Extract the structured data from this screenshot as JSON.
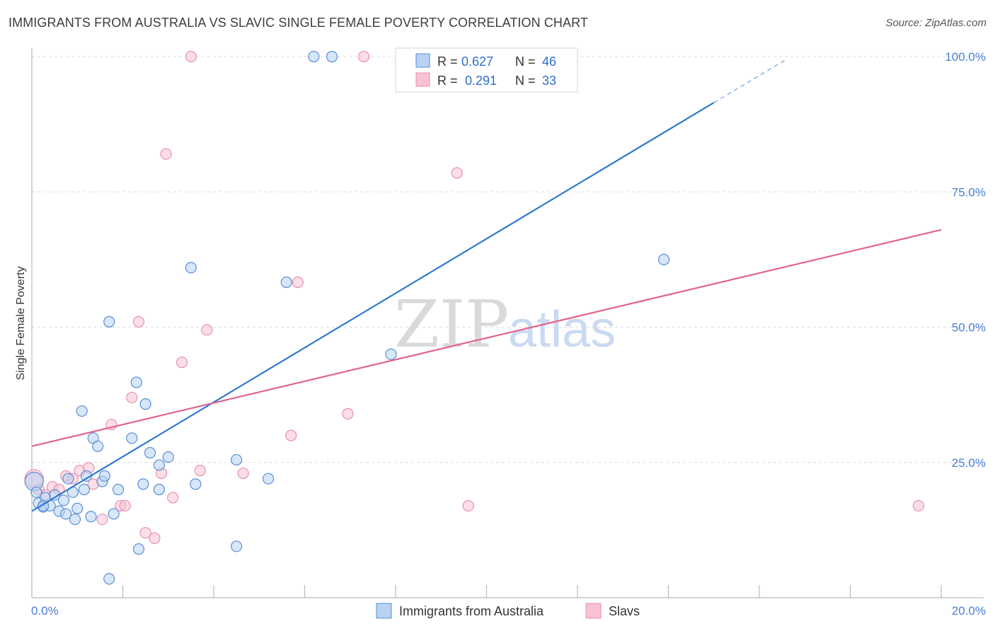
{
  "title": "IMMIGRANTS FROM AUSTRALIA VS SLAVIC SINGLE FEMALE POVERTY CORRELATION CHART",
  "source": "Source: ZipAtlas.com",
  "watermark": {
    "zip": "ZIP",
    "atlas": "atlas"
  },
  "colors": {
    "blue_fill": "#b7d2f3",
    "blue_stroke": "#5b8fd6",
    "blue_line": "#2f78cf",
    "pink_fill": "#f8c2d3",
    "pink_stroke": "#e890ab",
    "pink_line": "#e0648f",
    "tick_text": "#4a7fd0",
    "grid": "#dddddd"
  },
  "legend": {
    "rows": [
      {
        "r_label": "R = ",
        "r_value": "0.627",
        "n_label": "N = ",
        "n_value": "46"
      },
      {
        "r_label": "R = ",
        "r_value": "0.291",
        "n_label": "N = ",
        "n_value": "33"
      }
    ]
  },
  "chart_data": {
    "type": "scatter",
    "title": "IMMIGRANTS FROM AUSTRALIA VS SLAVIC SINGLE FEMALE POVERTY CORRELATION CHART",
    "xlabel": "",
    "ylabel": "Single Female Poverty",
    "xlim": [
      0,
      20
    ],
    "ylim": [
      0,
      102
    ],
    "x_tick_labels": [
      "0.0%",
      "20.0%"
    ],
    "y_ticks": [
      25,
      50,
      75,
      100
    ],
    "y_tick_labels": [
      "25.0%",
      "50.0%",
      "75.0%",
      "100.0%"
    ],
    "grid": true,
    "legend_position": "bottom-center",
    "series": [
      {
        "name": "Immigrants from Australia",
        "color": "blue",
        "r": 0.627,
        "n": 46,
        "trend": {
          "x0": 0.0,
          "y0": 16.0,
          "x1": 15.0,
          "y1": 91.5,
          "dash_to_x": 16.6,
          "dash_to_y": 99.5
        },
        "points": [
          [
            0.05,
            21.5,
            "big"
          ],
          [
            0.1,
            19.5
          ],
          [
            0.15,
            17.5
          ],
          [
            0.25,
            16.8
          ],
          [
            0.3,
            18.5
          ],
          [
            0.4,
            17.0
          ],
          [
            0.5,
            19.0
          ],
          [
            0.6,
            16.0
          ],
          [
            0.7,
            18.0
          ],
          [
            0.75,
            15.5
          ],
          [
            0.8,
            22.0
          ],
          [
            0.9,
            19.5
          ],
          [
            0.95,
            14.5
          ],
          [
            1.0,
            16.5
          ],
          [
            1.1,
            34.5
          ],
          [
            1.15,
            20.0
          ],
          [
            1.2,
            22.5
          ],
          [
            1.3,
            15.0
          ],
          [
            1.35,
            29.5
          ],
          [
            1.45,
            28.0
          ],
          [
            1.55,
            21.5
          ],
          [
            1.6,
            22.5
          ],
          [
            1.7,
            51.0
          ],
          [
            1.8,
            15.5
          ],
          [
            1.9,
            20.0
          ],
          [
            2.2,
            29.5
          ],
          [
            2.3,
            39.8
          ],
          [
            2.35,
            9.0
          ],
          [
            2.45,
            21.0
          ],
          [
            2.5,
            35.8
          ],
          [
            2.6,
            26.8
          ],
          [
            2.8,
            20.0
          ],
          [
            2.8,
            24.5
          ],
          [
            3.0,
            26.0
          ],
          [
            3.5,
            61.0
          ],
          [
            3.6,
            21.0
          ],
          [
            4.5,
            25.5
          ],
          [
            4.5,
            9.5
          ],
          [
            5.2,
            22.0
          ],
          [
            5.6,
            58.3
          ],
          [
            6.2,
            100.0
          ],
          [
            6.6,
            100.0
          ],
          [
            7.9,
            45.0
          ],
          [
            13.9,
            62.5
          ],
          [
            1.7,
            3.5
          ],
          [
            0.25,
            17.0
          ]
        ]
      },
      {
        "name": "Slavs",
        "color": "pink",
        "r": 0.291,
        "n": 33,
        "trend": {
          "x0": 0.0,
          "y0": 28.0,
          "x1": 20.0,
          "y1": 68.0
        },
        "points": [
          [
            0.05,
            22.0,
            "big"
          ],
          [
            0.15,
            20.0
          ],
          [
            0.3,
            19.0
          ],
          [
            0.45,
            20.5
          ],
          [
            0.6,
            20.0
          ],
          [
            0.75,
            22.5
          ],
          [
            0.9,
            22.0
          ],
          [
            1.05,
            23.5
          ],
          [
            1.25,
            24.0
          ],
          [
            1.35,
            21.0
          ],
          [
            1.55,
            14.5
          ],
          [
            1.75,
            32.0
          ],
          [
            1.95,
            17.0
          ],
          [
            2.05,
            17.0
          ],
          [
            2.2,
            37.0
          ],
          [
            2.35,
            51.0
          ],
          [
            2.5,
            12.0
          ],
          [
            2.7,
            11.0
          ],
          [
            2.85,
            23.0
          ],
          [
            2.95,
            82.0
          ],
          [
            3.1,
            18.5
          ],
          [
            3.3,
            43.5
          ],
          [
            3.5,
            100.0
          ],
          [
            3.7,
            23.5
          ],
          [
            3.85,
            49.5
          ],
          [
            4.65,
            23.0
          ],
          [
            5.7,
            30.0
          ],
          [
            5.85,
            58.3
          ],
          [
            6.95,
            34.0
          ],
          [
            7.3,
            100.0
          ],
          [
            9.35,
            78.5
          ],
          [
            9.6,
            17.0
          ],
          [
            19.5,
            17.0
          ]
        ]
      }
    ]
  },
  "x_axis": {
    "left_label": "0.0%",
    "right_label": "20.0%"
  },
  "bottom_legend": {
    "series1": "Immigrants from Australia",
    "series2": "Slavs"
  },
  "y_axis_label": "Single Female Poverty"
}
